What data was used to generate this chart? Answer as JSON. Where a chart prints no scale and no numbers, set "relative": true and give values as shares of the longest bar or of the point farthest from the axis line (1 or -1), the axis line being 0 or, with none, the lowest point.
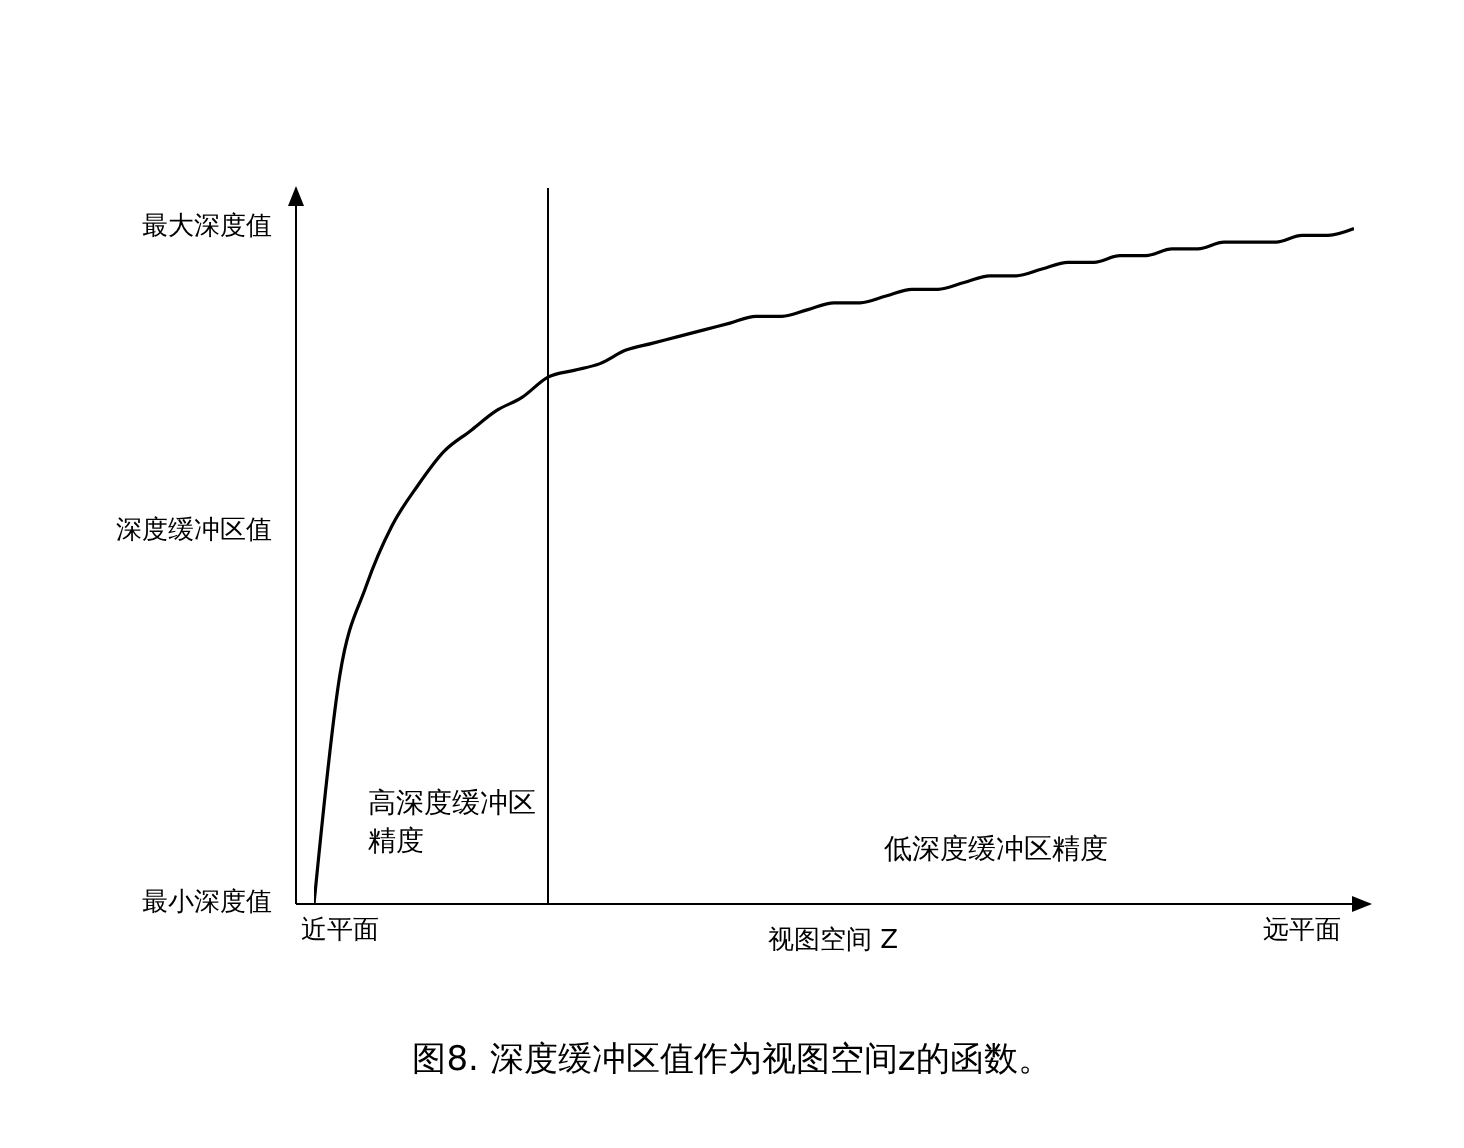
{
  "chart_data": {
    "type": "line",
    "title": "图8. 深度缓冲区值作为视图空间z的函数。",
    "xlabel": "视图空间 Z",
    "relative": true,
    "categories": [
      null,
      "近平面",
      null,
      null,
      null,
      null,
      null,
      null,
      null,
      null,
      null,
      null,
      null,
      null,
      null,
      null,
      null,
      null,
      null,
      null,
      null,
      null,
      null,
      null,
      null,
      null,
      null,
      null,
      null,
      null,
      null,
      null,
      null,
      null,
      null,
      null,
      null,
      null,
      "远平面",
      null,
      null
    ],
    "series": [
      {
        "color": "#000000",
        "values": [
          0,
          0.34,
          0.47,
          0.56,
          0.62,
          0.67,
          0.7,
          0.73,
          0.75,
          0.78,
          0.79,
          0.8,
          0.82,
          0.83,
          0.84,
          0.85,
          0.86,
          0.87,
          0.87,
          0.88,
          0.89,
          0.89,
          0.9,
          0.91,
          0.91,
          0.92,
          0.93,
          0.93,
          0.94,
          0.95,
          0.95,
          0.96,
          0.96,
          0.97,
          0.97,
          0.98,
          0.98,
          0.98,
          0.99,
          0.99,
          1.0
        ]
      }
    ],
    "annotations": [
      "最小深度值",
      "深度缓冲区值",
      "最大深度值",
      "高深度缓冲区精度",
      "低深度缓冲区精度"
    ],
    "marker": "none"
  }
}
